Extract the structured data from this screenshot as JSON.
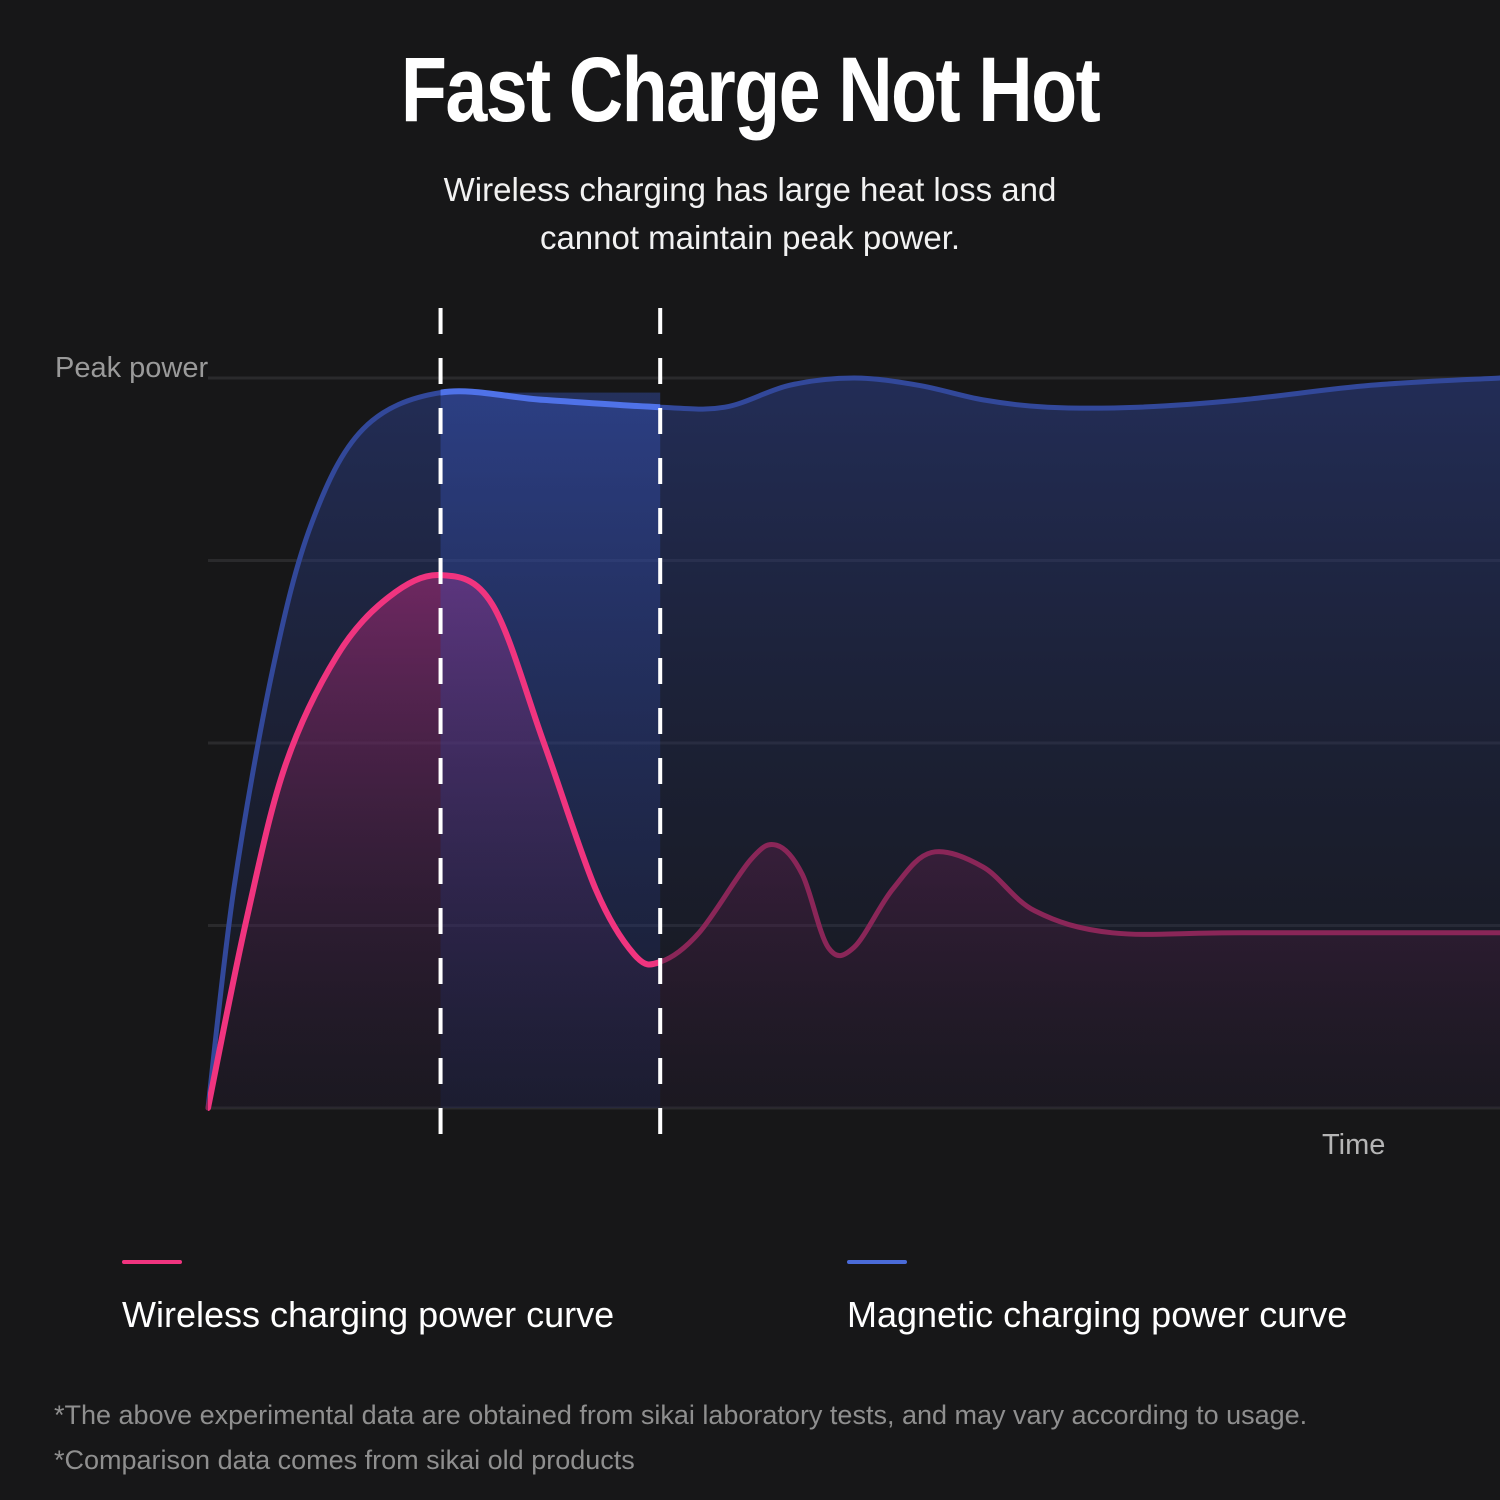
{
  "header": {
    "title": "Fast Charge Not Hot",
    "subtitle_line1": "Wireless charging has large heat loss and",
    "subtitle_line2": "cannot maintain peak power."
  },
  "chart_data": {
    "type": "line",
    "ylabel": "Peak power",
    "xlabel": "Time",
    "grid": true,
    "highlight_band": {
      "x_start": 0.18,
      "x_end": 0.35,
      "style": "dashed-white-borders"
    },
    "series": [
      {
        "name": "Magnetic charging power curve",
        "color": "#4a6bd8",
        "points": [
          [
            0,
            0
          ],
          [
            0.02,
            0.3
          ],
          [
            0.05,
            0.6
          ],
          [
            0.08,
            0.8
          ],
          [
            0.12,
            0.93
          ],
          [
            0.18,
            0.98
          ],
          [
            0.26,
            0.97
          ],
          [
            0.35,
            0.96
          ],
          [
            0.4,
            0.96
          ],
          [
            0.45,
            0.99
          ],
          [
            0.5,
            1.0
          ],
          [
            0.55,
            0.99
          ],
          [
            0.6,
            0.97
          ],
          [
            0.65,
            0.96
          ],
          [
            0.72,
            0.96
          ],
          [
            0.8,
            0.97
          ],
          [
            0.9,
            0.99
          ],
          [
            1.0,
            1.0
          ]
        ]
      },
      {
        "name": "Wireless charging power curve",
        "color": "#f0347f",
        "points": [
          [
            0,
            0
          ],
          [
            0.03,
            0.26
          ],
          [
            0.06,
            0.47
          ],
          [
            0.1,
            0.62
          ],
          [
            0.14,
            0.7
          ],
          [
            0.18,
            0.73
          ],
          [
            0.22,
            0.69
          ],
          [
            0.26,
            0.5
          ],
          [
            0.3,
            0.3
          ],
          [
            0.33,
            0.21
          ],
          [
            0.35,
            0.2
          ],
          [
            0.38,
            0.24
          ],
          [
            0.42,
            0.34
          ],
          [
            0.44,
            0.36
          ],
          [
            0.46,
            0.32
          ],
          [
            0.48,
            0.22
          ],
          [
            0.5,
            0.22
          ],
          [
            0.53,
            0.3
          ],
          [
            0.56,
            0.35
          ],
          [
            0.6,
            0.33
          ],
          [
            0.64,
            0.27
          ],
          [
            0.7,
            0.24
          ],
          [
            0.8,
            0.24
          ],
          [
            1.0,
            0.24
          ]
        ]
      }
    ]
  },
  "legend": {
    "wireless": {
      "label": "Wireless charging power curve",
      "color": "#f0347f"
    },
    "magnetic": {
      "label": "Magnetic charging power curve",
      "color": "#4a6bd8"
    }
  },
  "footnotes": {
    "line1": "*The above experimental data are obtained from sikai laboratory tests, and may vary according to usage.",
    "line2": "*Comparison data comes from sikai old products"
  }
}
